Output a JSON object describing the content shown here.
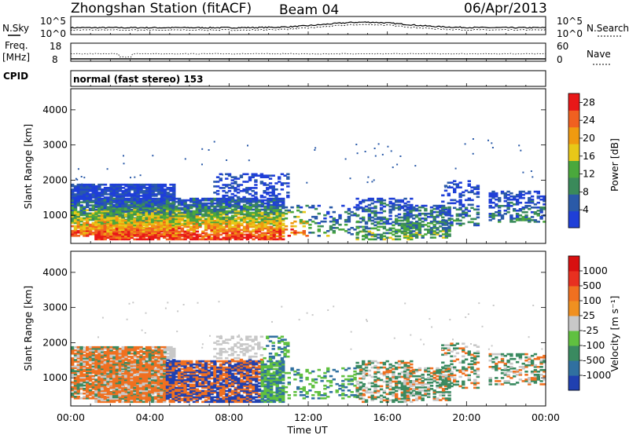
{
  "header": {
    "station": "Zhongshan Station (fitACF)",
    "beam": "Beam 04",
    "date": "06/Apr/2013"
  },
  "top_panels": {
    "nsky_label": "N.Sky",
    "nsearch_label": "N.Search",
    "freq_label": "Freq.",
    "freq_unit": "[MHz]",
    "nave_label": "Nave",
    "cpid_label": "CPID",
    "cpid_value": "normal (fast stereo) 153",
    "noise_ticks": [
      "10^5",
      "10^0"
    ],
    "freq_ticks": [
      "18",
      "8"
    ],
    "nave_ticks": [
      "60",
      "0"
    ]
  },
  "colors": {
    "power": [
      "#1f3fd8",
      "#2a5aa8",
      "#3a8a5a",
      "#4aa83c",
      "#e8c818",
      "#f09a10",
      "#f06020",
      "#e81818"
    ],
    "velocity": [
      "#2040b0",
      "#3070a0",
      "#3a8a60",
      "#60c040",
      "#c8c8c8",
      "#f09020",
      "#f07020",
      "#e83020",
      "#d81010"
    ]
  },
  "chart_data": [
    {
      "type": "heatmap",
      "title": "Power",
      "xlabel": "Time UT",
      "ylabel": "Slant Range [km]",
      "x_ticks": [
        "00:00",
        "04:00",
        "08:00",
        "12:00",
        "16:00",
        "20:00",
        "00:00"
      ],
      "y_ticks": [
        1000,
        2000,
        3000,
        4000
      ],
      "ylim": [
        200,
        4600
      ],
      "colorbar_label": "Power [dB]",
      "colorbar_ticks": [
        4,
        8,
        12,
        16,
        20,
        24,
        28
      ],
      "colorbar_range": [
        0,
        30
      ]
    },
    {
      "type": "heatmap",
      "title": "Velocity",
      "xlabel": "Time UT",
      "ylabel": "Slant Range [km]",
      "x_ticks": [
        "00:00",
        "04:00",
        "08:00",
        "12:00",
        "16:00",
        "20:00",
        "00:00"
      ],
      "y_ticks": [
        1000,
        2000,
        3000,
        4000
      ],
      "ylim": [
        200,
        4600
      ],
      "colorbar_label": "Velocity [m s⁻¹]",
      "colorbar_ticks": [
        1000,
        500,
        100,
        25,
        -25,
        -100,
        -500,
        -1000
      ]
    }
  ]
}
